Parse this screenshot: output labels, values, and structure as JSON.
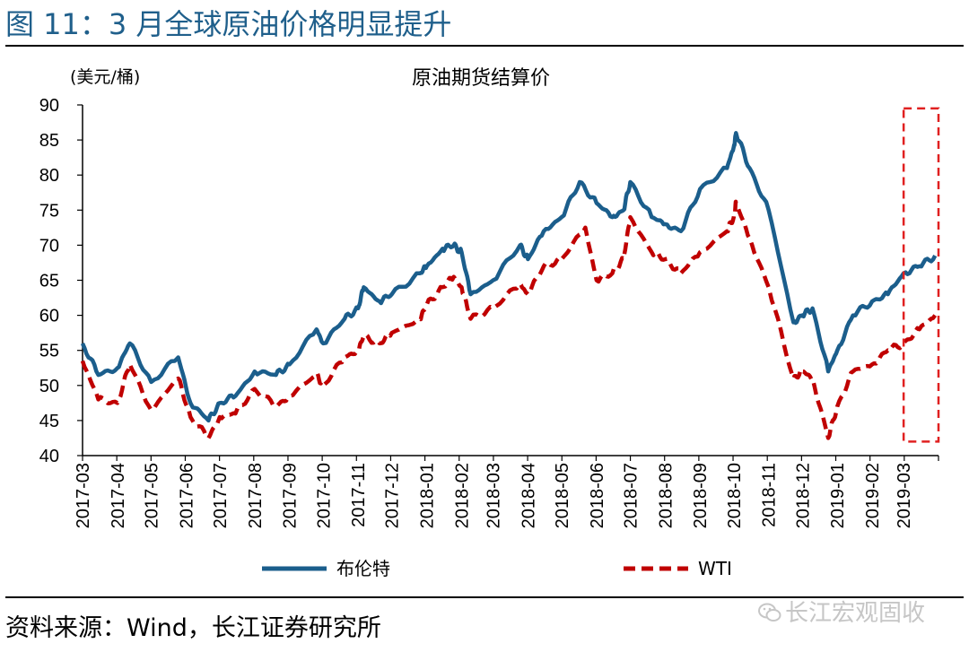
{
  "header": {
    "figure_title": "图 11：3 月全球原油价格明显提升"
  },
  "footer": {
    "source": "资料来源：Wind，长江证券研究所",
    "watermark": "长江宏观固收"
  },
  "icons": {
    "watermark_icon": "wechat-icon"
  },
  "colors": {
    "title": "#1f5f8b",
    "brent": "#1b5e8c",
    "wti": "#c00000",
    "highlight": "#e02020"
  },
  "chart_data": {
    "type": "line",
    "title": "原油期货结算价",
    "unit_label": "(美元/桶)",
    "ylim": [
      40,
      90
    ],
    "yticks": [
      40,
      45,
      50,
      55,
      60,
      65,
      70,
      75,
      80,
      85,
      90
    ],
    "xlim": [
      "2017-03",
      "2019-04"
    ],
    "xtick_labels": [
      "2017-03",
      "2017-04",
      "2017-05",
      "2017-06",
      "2017-07",
      "2017-08",
      "2017-09",
      "2017-10",
      "2017-11",
      "2017-12",
      "2018-01",
      "2018-02",
      "2018-03",
      "2018-04",
      "2018-05",
      "2018-06",
      "2018-07",
      "2018-08",
      "2018-09",
      "2018-10",
      "2018-11",
      "2018-12",
      "2019-01",
      "2019-02",
      "2019-03"
    ],
    "grid": false,
    "legend_position": "bottom",
    "highlight": {
      "style": "dashed-box",
      "from": "2019-03",
      "to": "2019-04",
      "ylim": [
        42,
        89.5
      ]
    },
    "series": [
      {
        "name": "布伦特",
        "style": "solid",
        "x": [
          "2017-03-01",
          "2017-03-15",
          "2017-04-01",
          "2017-04-12",
          "2017-05-01",
          "2017-05-25",
          "2017-06-05",
          "2017-06-21",
          "2017-07-01",
          "2017-07-15",
          "2017-08-01",
          "2017-08-20",
          "2017-09-01",
          "2017-09-25",
          "2017-10-01",
          "2017-10-20",
          "2017-11-01",
          "2017-11-06",
          "2017-11-20",
          "2017-12-01",
          "2017-12-26",
          "2018-01-01",
          "2018-01-15",
          "2018-01-25",
          "2018-02-01",
          "2018-02-09",
          "2018-03-01",
          "2018-03-25",
          "2018-04-01",
          "2018-04-15",
          "2018-05-01",
          "2018-05-17",
          "2018-06-01",
          "2018-06-15",
          "2018-06-25",
          "2018-07-01",
          "2018-07-20",
          "2018-08-01",
          "2018-08-15",
          "2018-09-01",
          "2018-09-25",
          "2018-10-01",
          "2018-10-03",
          "2018-10-15",
          "2018-11-01",
          "2018-11-23",
          "2018-12-01",
          "2018-12-10",
          "2018-12-24",
          "2019-01-01",
          "2019-01-15",
          "2019-02-01",
          "2019-02-15",
          "2019-03-01",
          "2019-03-15",
          "2019-03-29"
        ],
        "values": [
          56,
          51.5,
          52.5,
          56,
          50.5,
          54,
          47.5,
          45,
          47.5,
          48.5,
          52,
          51.5,
          53,
          58,
          56,
          59.5,
          61,
          64,
          62,
          63,
          66,
          67,
          69.5,
          70,
          69,
          63,
          65,
          70,
          68,
          72,
          74,
          79,
          76,
          74,
          75,
          79,
          74,
          73,
          72,
          78,
          81,
          84,
          86,
          81,
          75,
          59,
          60,
          61,
          52,
          55,
          60,
          62,
          63,
          66,
          67,
          68.5
        ]
      },
      {
        "name": "WTI",
        "style": "dashed",
        "x": [
          "2017-03-01",
          "2017-03-15",
          "2017-04-01",
          "2017-04-12",
          "2017-05-01",
          "2017-05-25",
          "2017-06-05",
          "2017-06-21",
          "2017-07-01",
          "2017-07-15",
          "2017-08-01",
          "2017-08-20",
          "2017-09-01",
          "2017-09-25",
          "2017-10-01",
          "2017-10-20",
          "2017-11-01",
          "2017-11-06",
          "2017-11-20",
          "2017-12-01",
          "2017-12-26",
          "2018-01-01",
          "2018-01-15",
          "2018-01-25",
          "2018-02-01",
          "2018-02-09",
          "2018-03-01",
          "2018-03-25",
          "2018-04-01",
          "2018-04-15",
          "2018-05-01",
          "2018-05-22",
          "2018-06-01",
          "2018-06-15",
          "2018-06-25",
          "2018-07-01",
          "2018-07-20",
          "2018-08-01",
          "2018-08-15",
          "2018-09-01",
          "2018-09-25",
          "2018-10-01",
          "2018-10-03",
          "2018-10-15",
          "2018-11-01",
          "2018-11-23",
          "2018-12-01",
          "2018-12-10",
          "2018-12-24",
          "2019-01-01",
          "2019-01-15",
          "2019-02-01",
          "2019-02-15",
          "2019-03-01",
          "2019-03-15",
          "2019-03-29"
        ],
        "values": [
          53.5,
          48,
          47.5,
          53,
          46.5,
          51,
          45.5,
          42.5,
          45.5,
          46,
          49.5,
          47,
          48.5,
          51.5,
          50,
          54,
          55,
          57,
          56,
          57.5,
          59.5,
          61.5,
          64,
          65.5,
          64,
          59.5,
          61,
          64.5,
          63,
          67,
          68,
          72.5,
          65,
          66,
          68,
          74,
          69,
          68,
          66,
          69,
          72,
          74,
          76,
          71,
          64,
          51,
          52,
          51,
          42.5,
          47,
          52,
          53,
          55,
          56,
          58,
          60
        ]
      }
    ],
    "legend": [
      {
        "name": "布伦特",
        "style": "solid"
      },
      {
        "name": "WTI",
        "style": "dashed"
      }
    ]
  }
}
